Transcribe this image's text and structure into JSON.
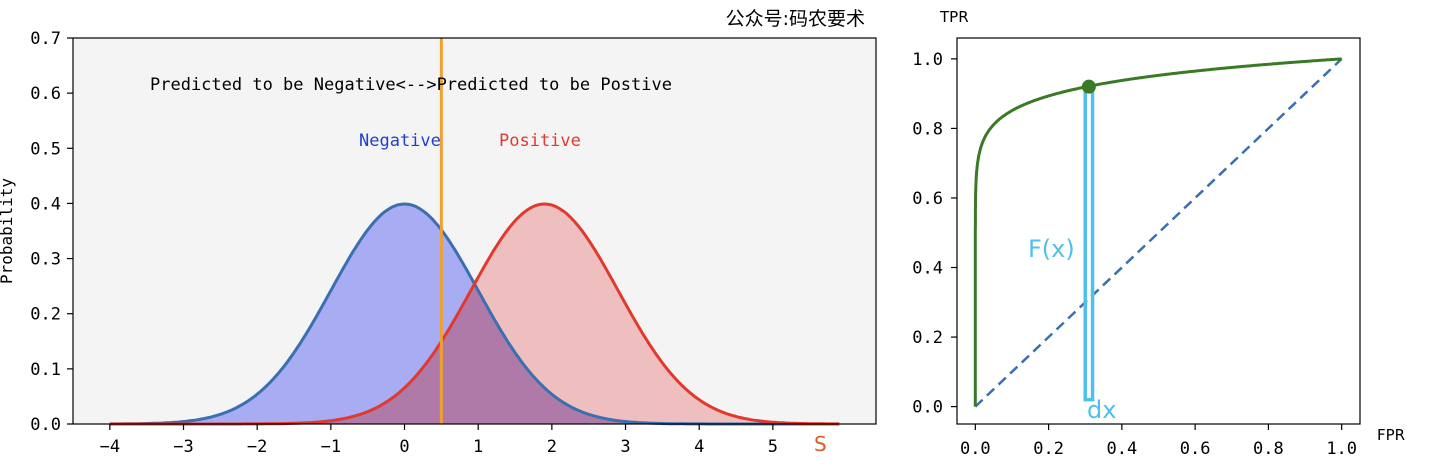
{
  "watermark": "公众号:码农要术",
  "chart_data": [
    {
      "type": "area",
      "xlabel": "S",
      "ylabel": "Probability",
      "xlim": [
        -4.5,
        6.4
      ],
      "ylim": [
        0,
        0.7
      ],
      "x_ticks": [
        -4,
        -3,
        -2,
        -1,
        0,
        1,
        2,
        3,
        4,
        5
      ],
      "y_ticks": [
        0.0,
        0.1,
        0.2,
        0.3,
        0.4,
        0.5,
        0.6,
        0.7
      ],
      "annotation": "Predicted to be Negative<-->Predicted to be Postive",
      "threshold_x": 0.5,
      "series": [
        {
          "name": "Negative",
          "distribution": "normal",
          "mean": 0,
          "std": 1,
          "x_range": [
            -4,
            5.9
          ],
          "peak": 0.399,
          "line_color": "#3a6fb0",
          "fill_color": "#a8acf2"
        },
        {
          "name": "Positive",
          "distribution": "normal",
          "mean": 1.9,
          "std": 1,
          "x_range": [
            -4,
            5.9
          ],
          "peak": 0.399,
          "line_color": "#e03a2e",
          "fill_color": "#eeaeae"
        }
      ],
      "threshold_color": "#f0a030",
      "label_colors": {
        "negative": "#1f3fd0",
        "positive": "#e03a2e",
        "xlabel": "#e05a2a"
      },
      "background": "#f4f4f4"
    },
    {
      "type": "line",
      "xlabel": "FPR",
      "ylabel": "TPR",
      "xlim": [
        -0.05,
        1.05
      ],
      "ylim": [
        -0.05,
        1.06
      ],
      "x_ticks": [
        0.0,
        0.2,
        0.4,
        0.6,
        0.8,
        1.0
      ],
      "y_ticks": [
        0.0,
        0.2,
        0.4,
        0.6,
        0.8,
        1.0
      ],
      "roc_curve": {
        "exponent": 0.07,
        "color": "#3a7a25"
      },
      "diagonal": {
        "from": [
          0,
          0
        ],
        "to": [
          1,
          1
        ],
        "style": "dashed",
        "color": "#3a6fb0"
      },
      "marked_point": [
        0.31,
        0.92
      ],
      "strip": {
        "x": [
          0.3,
          0.32
        ],
        "y_bottom": 0.02,
        "label": "dx",
        "color": "#4fc0ee"
      },
      "curve_label": "F(x)"
    }
  ]
}
